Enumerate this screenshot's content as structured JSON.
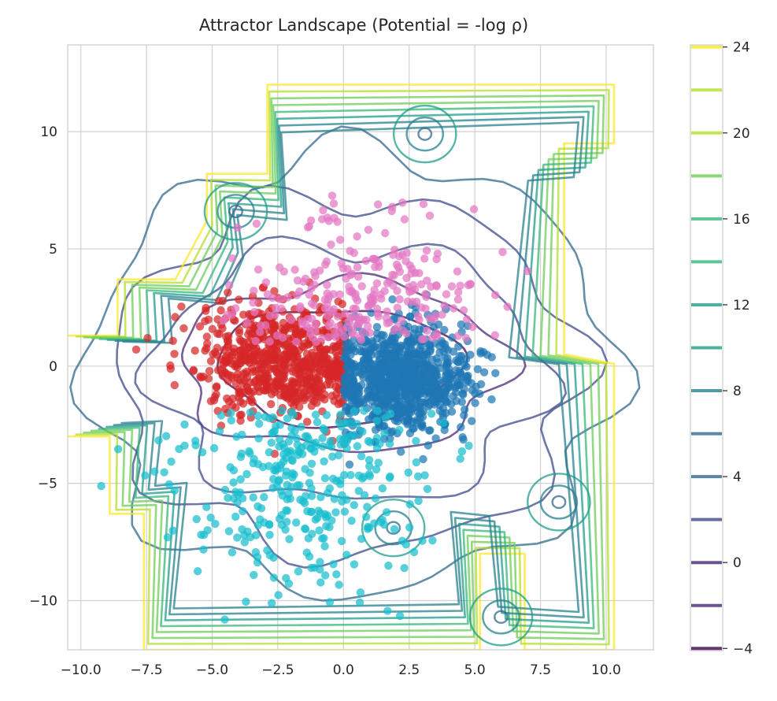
{
  "colors": {
    "red": "#d62728",
    "blue": "#1f77b4",
    "pink": "#e377c2",
    "cyan": "#17becf",
    "grid": "#d0d0d0",
    "colormap": [
      "#440154",
      "#482878",
      "#3e4989",
      "#31688e",
      "#26828e",
      "#1f9e89",
      "#35b779",
      "#6ece58",
      "#b5de2b",
      "#fde725"
    ]
  },
  "chart_data": {
    "type": "scatter",
    "title": "Attractor Landscape (Potential = -log ρ)",
    "xlabel": "",
    "ylabel": "",
    "xlim": [
      -10.5,
      11.8
    ],
    "ylim": [
      -12.1,
      13.7
    ],
    "xticks": [
      "−10.0",
      "−7.5",
      "−5.0",
      "−2.5",
      "0.0",
      "2.5",
      "5.0",
      "7.5",
      "10.0"
    ],
    "xtick_values": [
      -10,
      -7.5,
      -5,
      -2.5,
      0,
      2.5,
      5,
      7.5,
      10
    ],
    "yticks": [
      "−10",
      "−5",
      "0",
      "5",
      "10"
    ],
    "ytick_values": [
      -10,
      -5,
      0,
      5,
      10
    ],
    "grid": true,
    "colorbar": {
      "label": "",
      "range": [
        -4.1,
        24.1
      ],
      "ticks": [
        "24",
        "20",
        "16",
        "12",
        "8",
        "4",
        "0",
        "−4"
      ],
      "tick_values": [
        24,
        20,
        16,
        12,
        8,
        4,
        0,
        -4
      ],
      "levels": [
        -4,
        -2,
        0,
        2,
        4,
        6,
        8,
        10,
        12,
        14,
        16,
        18,
        20,
        22,
        24
      ]
    },
    "series": [
      {
        "cluster": "red",
        "center": [
          -2.3,
          0.2
        ],
        "spread": [
          1.6,
          1.2
        ],
        "color": "#d62728"
      },
      {
        "cluster": "blue",
        "center": [
          2.3,
          -0.6
        ],
        "spread": [
          1.3,
          1.1
        ],
        "color": "#1f77b4"
      },
      {
        "cluster": "pink",
        "center": [
          0.6,
          2.6
        ],
        "spread": [
          2.2,
          2.3
        ],
        "color": "#e377c2"
      },
      {
        "cluster": "cyan",
        "center": [
          -1.5,
          -4.8
        ],
        "spread": [
          2.3,
          2.6
        ],
        "color": "#17becf"
      }
    ],
    "contours": [
      {
        "level": -4,
        "description": "basin around both attractors",
        "center": [
          -0.2,
          0.0
        ],
        "radius": [
          4.6,
          2.5
        ]
      },
      {
        "level": 0,
        "center": [
          0.0,
          0.0
        ],
        "radius": [
          6.2,
          3.6
        ]
      },
      {
        "level": 2,
        "center": [
          0.2,
          -0.3
        ],
        "radius": [
          7.4,
          5.5
        ]
      },
      {
        "level": 4,
        "center": [
          0.2,
          -0.4
        ],
        "radius": [
          8.8,
          7.6
        ]
      }
    ],
    "potential_min_points": [
      [
        -4.1,
        6.6
      ],
      [
        1.9,
        -6.9
      ],
      [
        6.0,
        -10.7
      ],
      [
        8.2,
        -5.8
      ],
      [
        3.1,
        9.9
      ]
    ]
  }
}
